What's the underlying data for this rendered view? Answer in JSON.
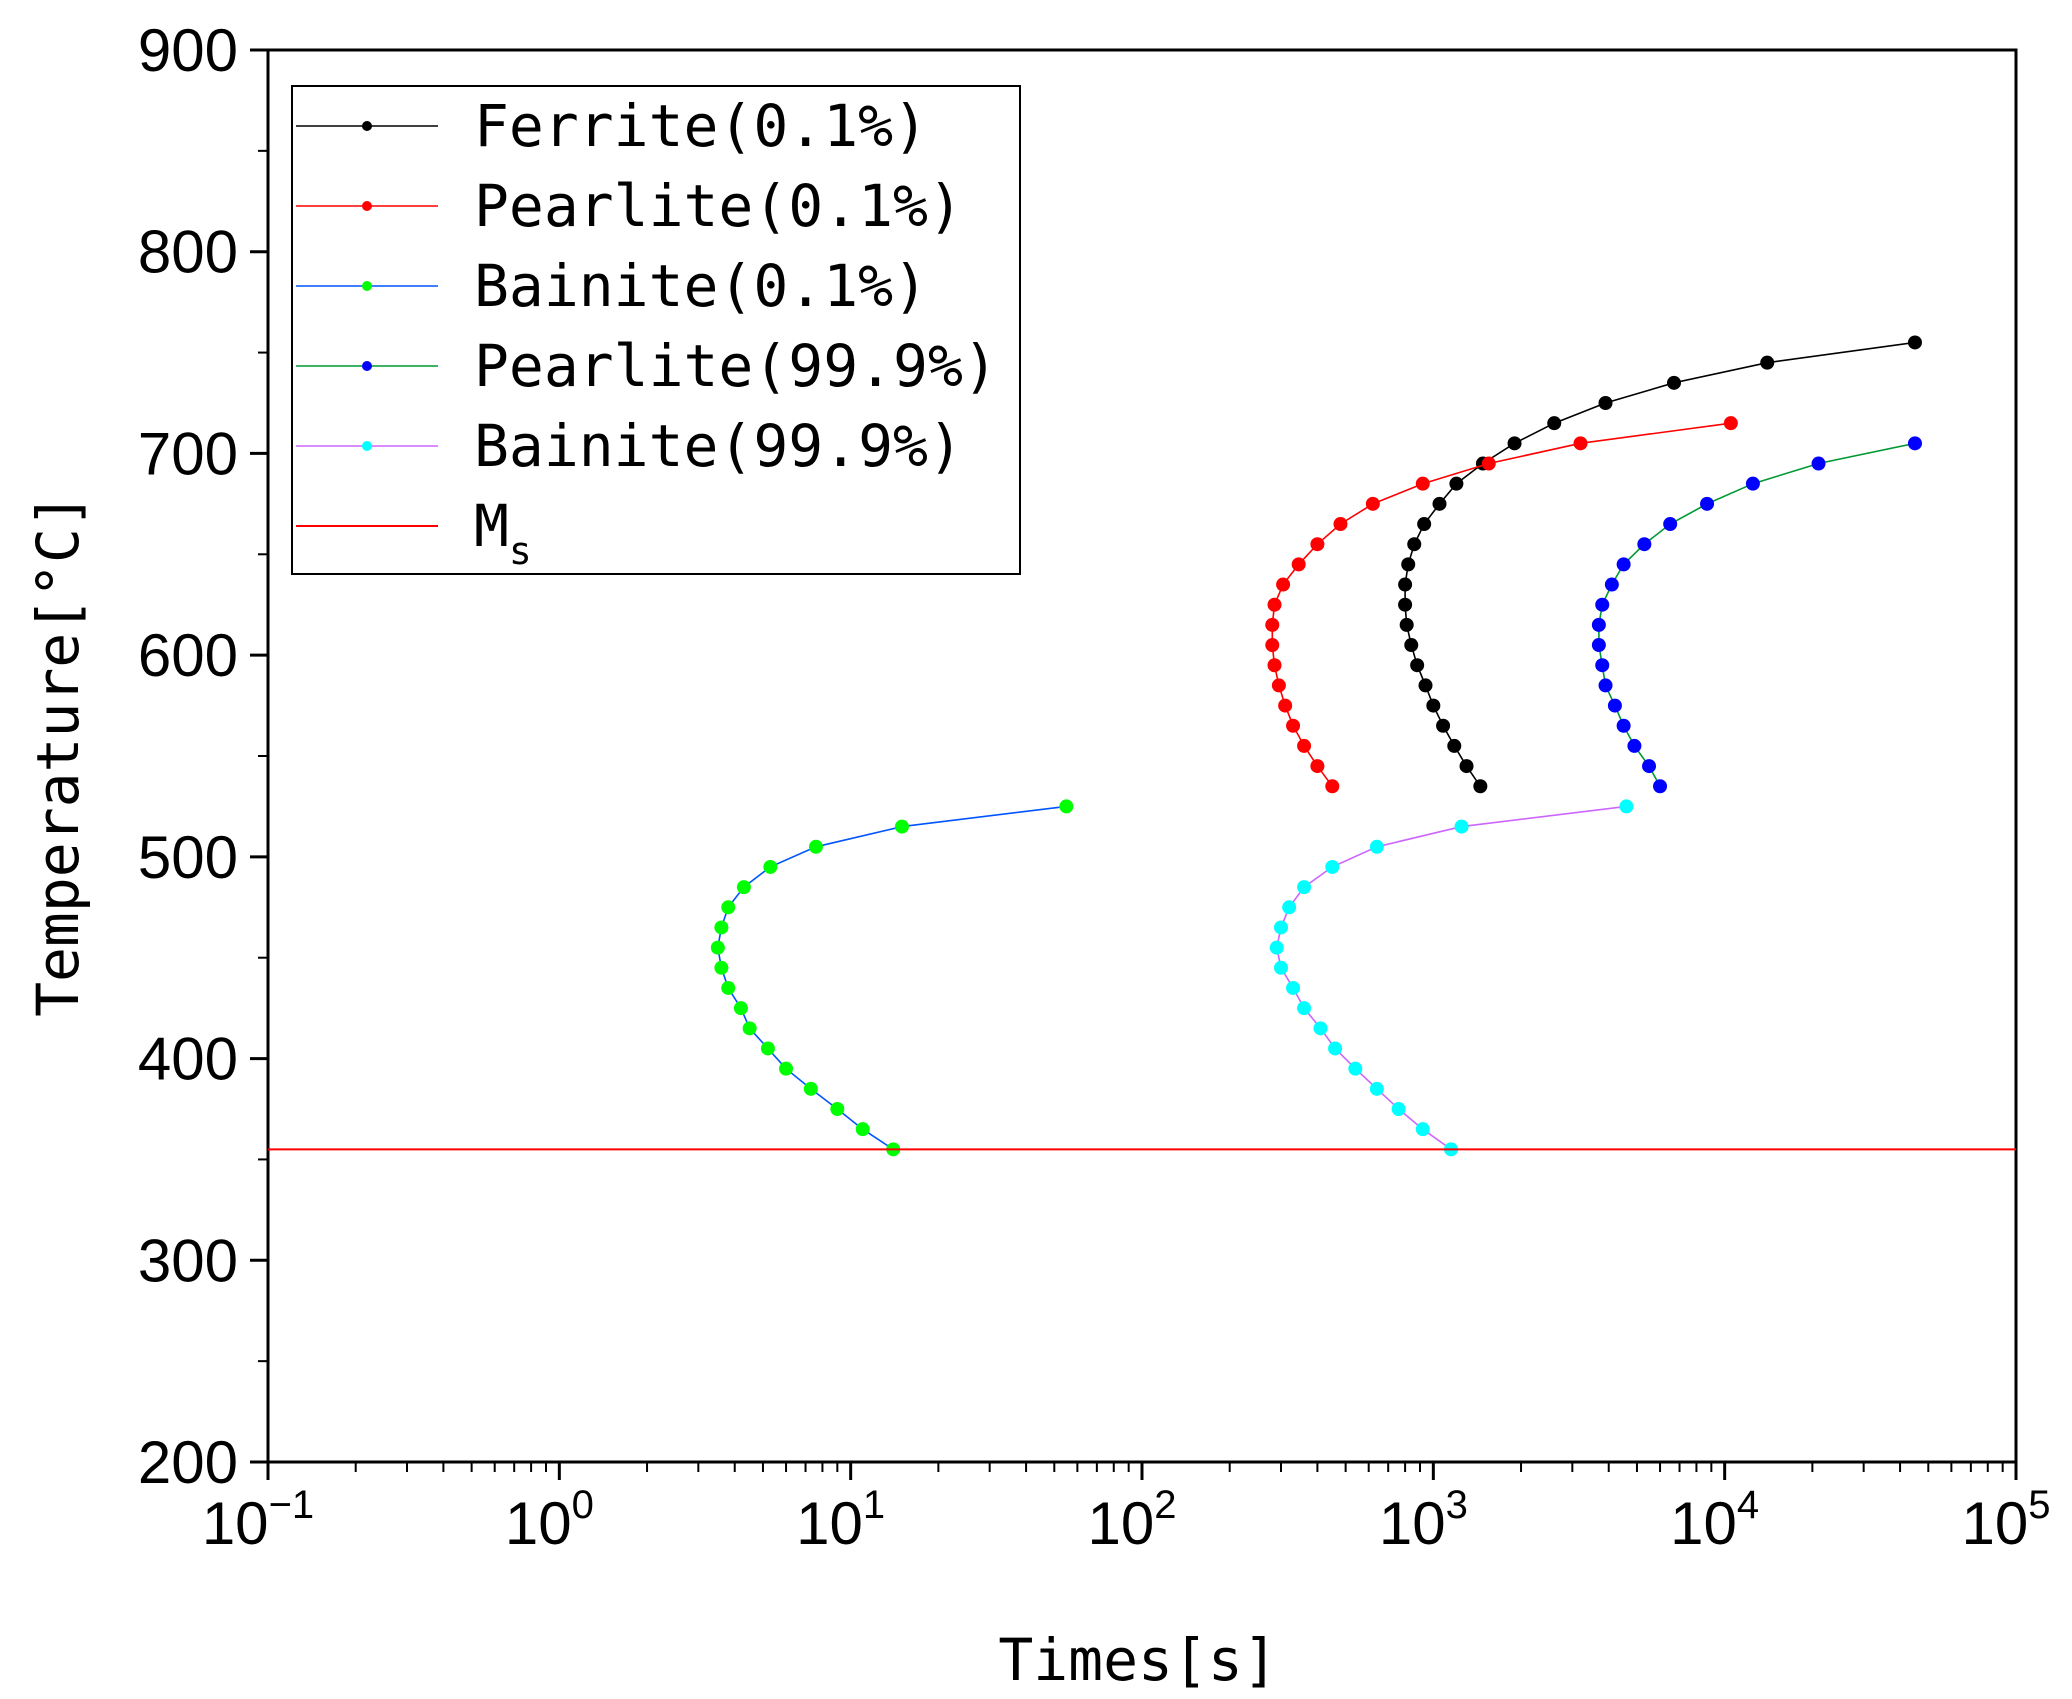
{
  "chart_data": {
    "type": "line",
    "xscale": "log",
    "xlabel": "Times[s]",
    "ylabel": "Temperature[°C]",
    "xlim": [
      0.1,
      100000
    ],
    "ylim": [
      200,
      900
    ],
    "x_ticks": [
      {
        "value": 0.1,
        "base": "10",
        "exp": "−1"
      },
      {
        "value": 1,
        "base": "10",
        "exp": "0"
      },
      {
        "value": 10,
        "base": "10",
        "exp": "1"
      },
      {
        "value": 100,
        "base": "10",
        "exp": "2"
      },
      {
        "value": 1000,
        "base": "10",
        "exp": "3"
      },
      {
        "value": 10000,
        "base": "10",
        "exp": "4"
      },
      {
        "value": 100000,
        "base": "10",
        "exp": "5"
      }
    ],
    "y_ticks": [
      "200",
      "300",
      "400",
      "500",
      "600",
      "700",
      "800",
      "900"
    ],
    "legend_position": "top-left",
    "series": [
      {
        "name": "Ferrite(0.1%)",
        "color": "#000000",
        "points": [
          [
            1450,
            535
          ],
          [
            1300,
            545
          ],
          [
            1180,
            555
          ],
          [
            1080,
            565
          ],
          [
            1000,
            575
          ],
          [
            940,
            585
          ],
          [
            880,
            595
          ],
          [
            840,
            605
          ],
          [
            810,
            615
          ],
          [
            800,
            625
          ],
          [
            800,
            635
          ],
          [
            820,
            645
          ],
          [
            860,
            655
          ],
          [
            930,
            665
          ],
          [
            1050,
            675
          ],
          [
            1200,
            685
          ],
          [
            1480,
            695
          ],
          [
            1900,
            705
          ],
          [
            2600,
            715
          ],
          [
            3900,
            725
          ],
          [
            6700,
            735
          ],
          [
            14000,
            745
          ],
          [
            45000,
            755
          ]
        ]
      },
      {
        "name": "Pearlite(0.1%)",
        "color": "#ff0000",
        "points": [
          [
            450,
            535
          ],
          [
            400,
            545
          ],
          [
            360,
            555
          ],
          [
            330,
            565
          ],
          [
            310,
            575
          ],
          [
            295,
            585
          ],
          [
            285,
            595
          ],
          [
            280,
            605
          ],
          [
            280,
            615
          ],
          [
            285,
            625
          ],
          [
            305,
            635
          ],
          [
            345,
            645
          ],
          [
            400,
            655
          ],
          [
            480,
            665
          ],
          [
            620,
            675
          ],
          [
            920,
            685
          ],
          [
            1550,
            695
          ],
          [
            3200,
            705
          ],
          [
            10500,
            715
          ]
        ]
      },
      {
        "name": "Bainite(0.1%)",
        "color": "#00ff00",
        "line_color": "#0055ff",
        "points": [
          [
            14,
            355
          ],
          [
            11,
            365
          ],
          [
            9,
            375
          ],
          [
            7.3,
            385
          ],
          [
            6,
            395
          ],
          [
            5.2,
            405
          ],
          [
            4.5,
            415
          ],
          [
            4.2,
            425
          ],
          [
            3.8,
            435
          ],
          [
            3.6,
            445
          ],
          [
            3.5,
            455
          ],
          [
            3.6,
            465
          ],
          [
            3.8,
            475
          ],
          [
            4.3,
            485
          ],
          [
            5.3,
            495
          ],
          [
            7.6,
            505
          ],
          [
            15,
            515
          ],
          [
            55,
            525
          ]
        ]
      },
      {
        "name": "Pearlite(99.9%)",
        "color": "#0000ff",
        "line_color": "#009933",
        "points": [
          [
            6000,
            535
          ],
          [
            5500,
            545
          ],
          [
            4900,
            555
          ],
          [
            4500,
            565
          ],
          [
            4200,
            575
          ],
          [
            3900,
            585
          ],
          [
            3800,
            595
          ],
          [
            3700,
            605
          ],
          [
            3700,
            615
          ],
          [
            3800,
            625
          ],
          [
            4100,
            635
          ],
          [
            4500,
            645
          ],
          [
            5300,
            655
          ],
          [
            6500,
            665
          ],
          [
            8700,
            675
          ],
          [
            12500,
            685
          ],
          [
            21000,
            695
          ],
          [
            45000,
            705
          ]
        ]
      },
      {
        "name": "Bainite(99.9%)",
        "color": "#00ffff",
        "line_color": "#cc66ff",
        "points": [
          [
            1150,
            355
          ],
          [
            920,
            365
          ],
          [
            760,
            375
          ],
          [
            640,
            385
          ],
          [
            540,
            395
          ],
          [
            460,
            405
          ],
          [
            410,
            415
          ],
          [
            360,
            425
          ],
          [
            330,
            435
          ],
          [
            300,
            445
          ],
          [
            290,
            455
          ],
          [
            300,
            465
          ],
          [
            320,
            475
          ],
          [
            360,
            485
          ],
          [
            450,
            495
          ],
          [
            640,
            505
          ],
          [
            1250,
            515
          ],
          [
            4600,
            525
          ]
        ]
      }
    ],
    "hlines": [
      {
        "name": "Ms",
        "label_main": "M",
        "label_sub": "s",
        "y": 355,
        "color": "#ff0000"
      }
    ]
  }
}
